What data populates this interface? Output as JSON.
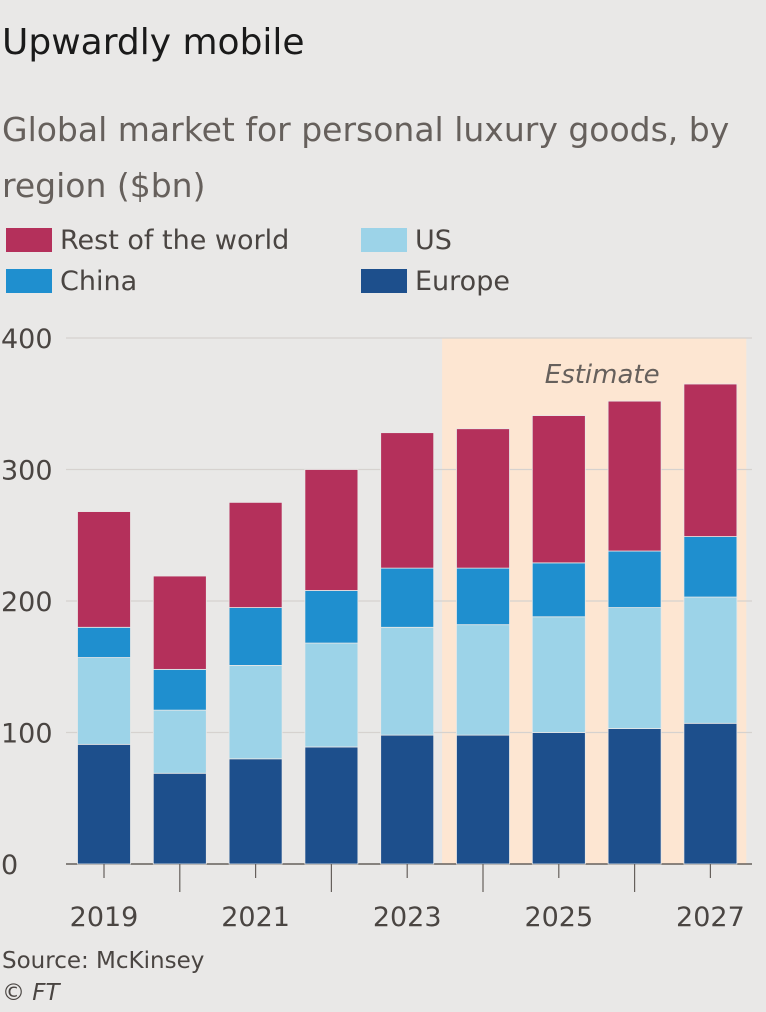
{
  "title": "Upwardly mobile",
  "subtitle": "Global market for personal luxury goods, by region ($bn)",
  "legend": [
    {
      "label": "Rest of the world",
      "color": "#b4305b"
    },
    {
      "label": "US",
      "color": "#9cd3e8"
    },
    {
      "label": "China",
      "color": "#1f8fcf"
    },
    {
      "label": "Europe",
      "color": "#1d4f8c"
    }
  ],
  "annotation": "Estimate",
  "source": "Source: McKinsey",
  "copyright": "© FT",
  "chart_data": {
    "type": "bar",
    "stacked": true,
    "categories": [
      "2019",
      "2020",
      "2021",
      "2022",
      "2023",
      "2024",
      "2025",
      "2026",
      "2027"
    ],
    "x_tick_labels": [
      "2019",
      "2021",
      "2023",
      "2025",
      "2027"
    ],
    "series": [
      {
        "name": "Europe",
        "color": "#1d4f8c",
        "values": [
          91,
          69,
          80,
          89,
          98,
          98,
          100,
          103,
          107
        ]
      },
      {
        "name": "US",
        "color": "#9cd3e8",
        "values": [
          66,
          48,
          71,
          79,
          82,
          84,
          88,
          92,
          96
        ]
      },
      {
        "name": "China",
        "color": "#1f8fcf",
        "values": [
          23,
          31,
          44,
          40,
          45,
          43,
          41,
          43,
          46
        ]
      },
      {
        "name": "Rest of the world",
        "color": "#b4305b",
        "values": [
          88,
          71,
          80,
          92,
          103,
          106,
          112,
          114,
          116
        ]
      }
    ],
    "ylim": [
      0,
      400
    ],
    "yticks": [
      0,
      100,
      200,
      300,
      400
    ],
    "grid": true,
    "shaded_region": {
      "from": "2024",
      "to": "2027",
      "label": "Estimate",
      "color": "#fde6d2"
    }
  }
}
